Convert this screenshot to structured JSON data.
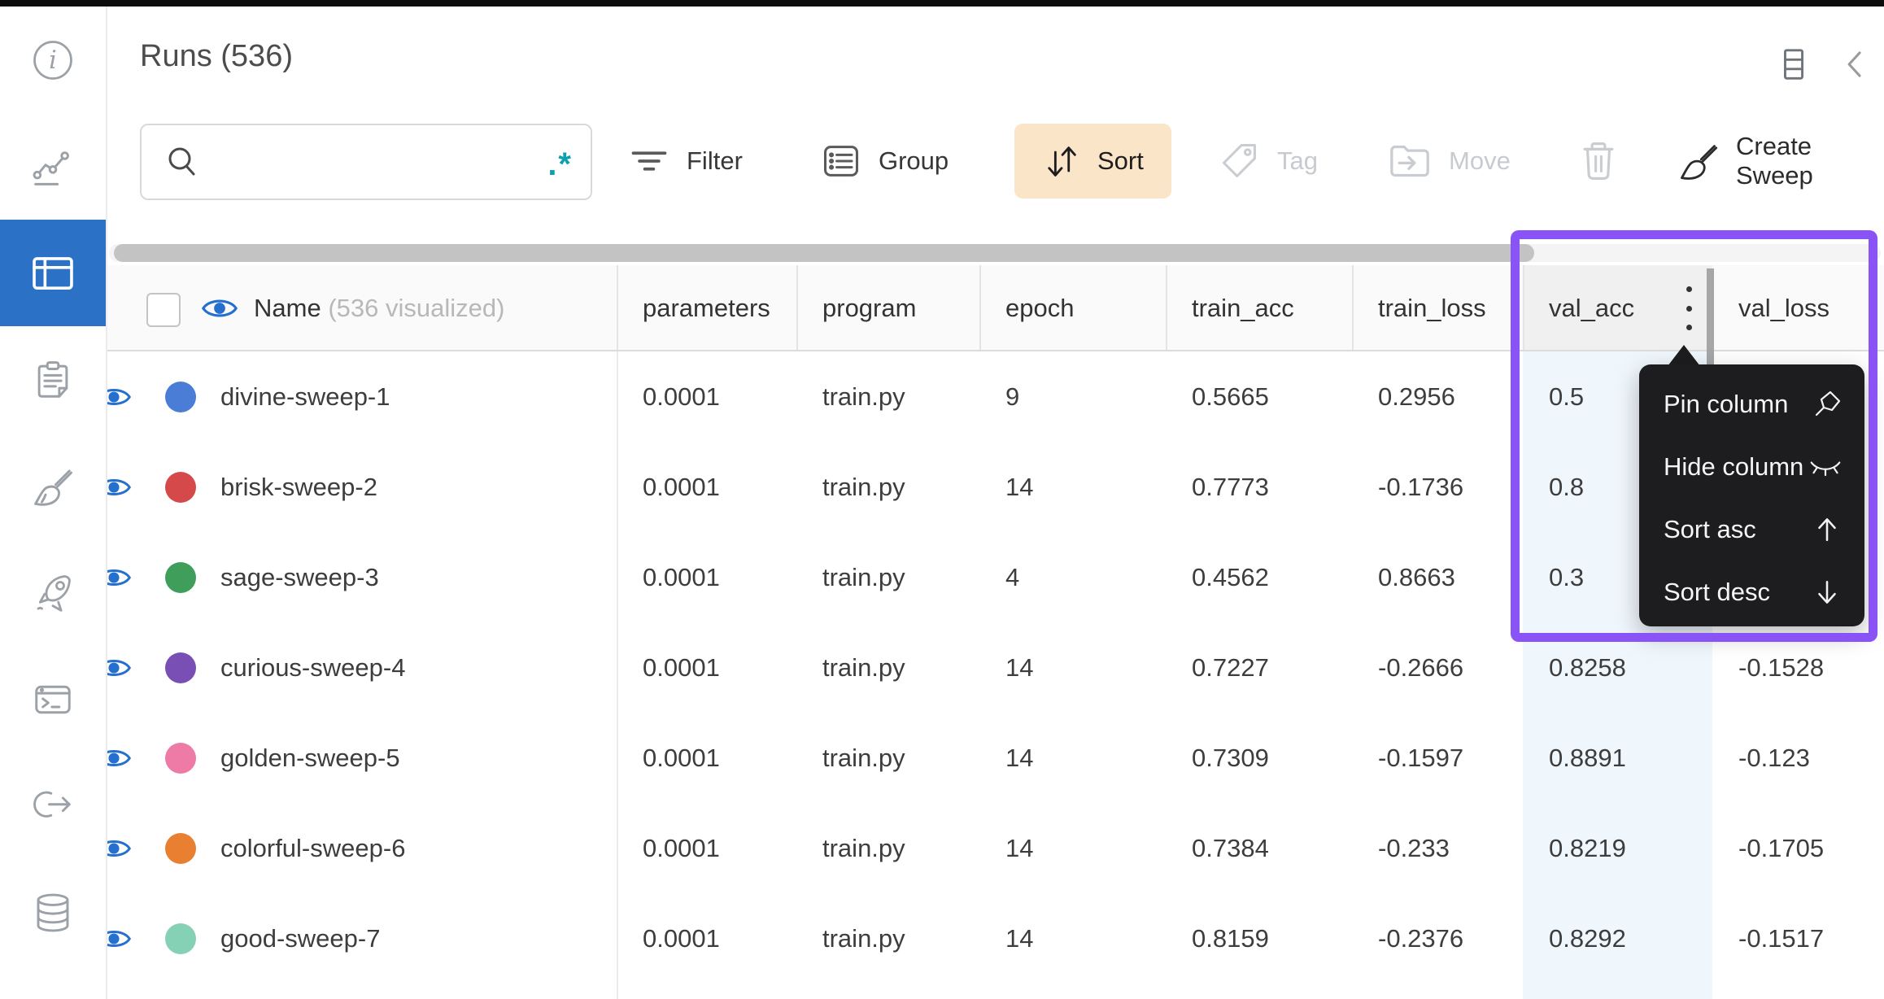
{
  "page": {
    "title": "Runs (536)"
  },
  "sidebar": {
    "items": [
      {
        "icon": "info-icon"
      },
      {
        "icon": "panels-chart-icon"
      },
      {
        "icon": "runs-table-icon",
        "active": true
      },
      {
        "icon": "clipboard-icon"
      },
      {
        "icon": "broom-icon"
      },
      {
        "icon": "rocket-icon"
      },
      {
        "icon": "terminal-icon"
      },
      {
        "icon": "link-out-icon"
      },
      {
        "icon": "database-icon"
      }
    ]
  },
  "toolbar": {
    "search_placeholder": "",
    "regex_glyph": ".*",
    "filter_label": "Filter",
    "group_label": "Group",
    "sort_label": "Sort",
    "tag_label": "Tag",
    "move_label": "Move",
    "create_sweep_label": "Create Sweep"
  },
  "table": {
    "name_header": "Name",
    "name_note": "(536 visualized)",
    "columns": [
      "parameters",
      "program",
      "epoch",
      "train_acc",
      "train_loss",
      "val_acc",
      "val_loss"
    ],
    "rows": [
      {
        "name": "divine-sweep-1",
        "color": "#4a7dd6",
        "parameters": "0.0001",
        "program": "train.py",
        "epoch": "9",
        "train_acc": "0.5665",
        "train_loss": "0.2956",
        "val_acc": "0.5",
        "val_loss": ""
      },
      {
        "name": "brisk-sweep-2",
        "color": "#d5494b",
        "parameters": "0.0001",
        "program": "train.py",
        "epoch": "14",
        "train_acc": "0.7773",
        "train_loss": "-0.1736",
        "val_acc": "0.8",
        "val_loss": ""
      },
      {
        "name": "sage-sweep-3",
        "color": "#3f9e5a",
        "parameters": "0.0001",
        "program": "train.py",
        "epoch": "4",
        "train_acc": "0.4562",
        "train_loss": "0.8663",
        "val_acc": "0.3",
        "val_loss": ""
      },
      {
        "name": "curious-sweep-4",
        "color": "#7a4fb5",
        "parameters": "0.0001",
        "program": "train.py",
        "epoch": "14",
        "train_acc": "0.7227",
        "train_loss": "-0.2666",
        "val_acc": "0.8258",
        "val_loss": "-0.1528"
      },
      {
        "name": "golden-sweep-5",
        "color": "#ee7ba5",
        "parameters": "0.0001",
        "program": "train.py",
        "epoch": "14",
        "train_acc": "0.7309",
        "train_loss": "-0.1597",
        "val_acc": "0.8891",
        "val_loss": "-0.123"
      },
      {
        "name": "colorful-sweep-6",
        "color": "#e87f31",
        "parameters": "0.0001",
        "program": "train.py",
        "epoch": "14",
        "train_acc": "0.7384",
        "train_loss": "-0.233",
        "val_acc": "0.8219",
        "val_loss": "-0.1705"
      },
      {
        "name": "good-sweep-7",
        "color": "#85d1b5",
        "parameters": "0.0001",
        "program": "train.py",
        "epoch": "14",
        "train_acc": "0.8159",
        "train_loss": "-0.2376",
        "val_acc": "0.8292",
        "val_loss": "-0.1517"
      }
    ]
  },
  "column_menu": {
    "items": [
      {
        "label": "Pin column",
        "icon": "pin-icon"
      },
      {
        "label": "Hide column",
        "icon": "eye-closed-icon"
      },
      {
        "label": "Sort asc",
        "icon": "arrow-up-icon"
      },
      {
        "label": "Sort desc",
        "icon": "arrow-down-icon"
      }
    ]
  },
  "colors": {
    "accent_highlight": "#8a53f5",
    "sort_button_bg": "#fbe5c9",
    "sidebar_active": "#2b72c6",
    "eye_blue": "#2570cf",
    "regex_teal": "#0e9fad",
    "menu_bg": "#1d1d1f",
    "valacc_column_tint": "#eff6fc"
  }
}
